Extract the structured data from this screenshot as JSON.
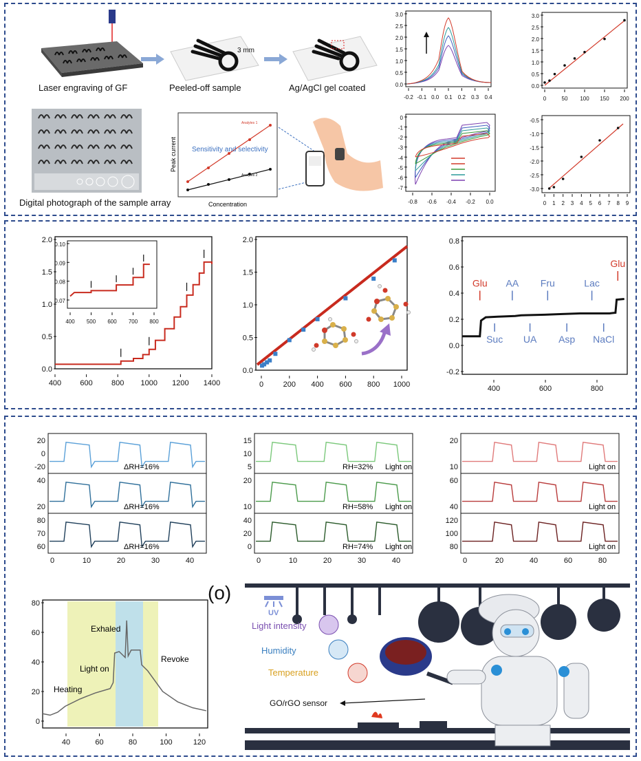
{
  "panel1": {
    "captions": {
      "laser": "Laser engraving of GF",
      "peeled": "Peeled-off sample",
      "coated": "Ag/AgCl gel coated",
      "photo": "Digital photograph of the sample array"
    },
    "scale_label": "3 mm",
    "schematic": {
      "ylabel": "Peak current",
      "xlabel": "Concentration",
      "title": "Sensitivity and selectivity",
      "series1": "Analytes 1",
      "series2": "Analytes 2"
    },
    "dpv_ticks_x": [
      "-0.2",
      "-0.1",
      "0.0",
      "0.1",
      "0.2",
      "0.3",
      "0.4"
    ],
    "dpv_ticks_y": [
      "0.0",
      "0.5",
      "1.0",
      "1.5",
      "2.0",
      "2.5",
      "3.0"
    ],
    "cal1_ticks_x": [
      "0",
      "50",
      "100",
      "150",
      "200"
    ],
    "cal1_ticks_y": [
      "0.0",
      "0.5",
      "1.0",
      "1.5",
      "2.0",
      "2.5",
      "3.0"
    ],
    "cv_ticks_x": [
      "-0.8",
      "-0.6",
      "-0.4",
      "-0.2",
      "0.0"
    ],
    "cv_ticks_y": [
      "0",
      "-1",
      "-2",
      "-3",
      "-4",
      "-5",
      "-6",
      "-7"
    ],
    "cal2_ticks_x": [
      "0",
      "1",
      "2",
      "3",
      "4",
      "5",
      "6",
      "7",
      "8",
      "9"
    ],
    "cal2_ticks_y": [
      "-0.5",
      "-1.0",
      "-1.5",
      "-2.0",
      "-2.5",
      "-3.0"
    ]
  },
  "panel2": {
    "amp_ticks_x": [
      "400",
      "600",
      "800",
      "1000",
      "1200",
      "1400"
    ],
    "amp_ticks_y": [
      "0.0",
      "0.5",
      "1.0",
      "1.5",
      "2.0"
    ],
    "inset_ticks_x": [
      "400",
      "500",
      "600",
      "700",
      "800"
    ],
    "inset_ticks_y": [
      "0.07",
      "0.08",
      "0.09",
      "0.10"
    ],
    "lin_ticks_x": [
      "0",
      "200",
      "400",
      "600",
      "800",
      "1000"
    ],
    "lin_ticks_y": [
      "0.0",
      "0.5",
      "1.0",
      "1.5",
      "2.0"
    ],
    "sel_ticks_x": [
      "400",
      "600",
      "800"
    ],
    "sel_ticks_y": [
      "-0.2",
      "0.0",
      "0.2",
      "0.4",
      "0.6",
      "0.8"
    ],
    "sel_labels": {
      "glu1": "Glu",
      "aa": "AA",
      "fru": "Fru",
      "lac": "Lac",
      "glu2": "Glu",
      "suc": "Suc",
      "ua": "UA",
      "asp": "Asp",
      "nacl": "NaCl"
    }
  },
  "panel3": {
    "left_labels": [
      "ΔRH=16%",
      "ΔRH=16%",
      "ΔRH=16%"
    ],
    "left_ticks_y": [
      [
        "20",
        "0",
        "-20"
      ],
      [
        "40",
        "20"
      ],
      [
        "80",
        "70",
        "60"
      ]
    ],
    "left_ticks_x": [
      "0",
      "10",
      "20",
      "30",
      "40"
    ],
    "mid_labels": [
      [
        "RH=32%",
        "Light on"
      ],
      [
        "RH=58%",
        "Light on"
      ],
      [
        "RH=74%",
        "Light on"
      ]
    ],
    "mid_ticks_y": [
      [
        "15",
        "10",
        "5"
      ],
      [
        "20",
        "10"
      ],
      [
        "40",
        "20",
        "0"
      ]
    ],
    "mid_ticks_x": [
      "0",
      "10",
      "20",
      "30",
      "40"
    ],
    "right_labels": [
      "Light on",
      "Light on",
      "Light on"
    ],
    "right_ticks_y": [
      [
        "20",
        "10"
      ],
      [
        "60",
        "40"
      ],
      [
        "120",
        "100",
        "80"
      ]
    ],
    "right_ticks_x": [
      "0",
      "20",
      "40",
      "60",
      "80"
    ],
    "bottom_chart": {
      "ticks_x": [
        "40",
        "60",
        "80",
        "100",
        "120"
      ],
      "ticks_y": [
        "0",
        "20",
        "40",
        "60",
        "80"
      ],
      "annotations": {
        "heating": "Heating",
        "light_on": "Light on",
        "exhaled": "Exhaled",
        "revoke": "Revoke"
      }
    },
    "panel_label": "(o)",
    "cartoon": {
      "uv": "UV",
      "light": "Light intensity",
      "humidity": "Humidity",
      "temperature": "Temperature",
      "sensor": "GO/rGO sensor"
    }
  },
  "colors": {
    "panel_border": "#2c4a8c",
    "red": "#d23a2a",
    "blue_label": "#5b7bbf",
    "purple": "#7a4fb0",
    "yellow_band": "#eef2b8",
    "blue_band": "#bfe0ea"
  }
}
